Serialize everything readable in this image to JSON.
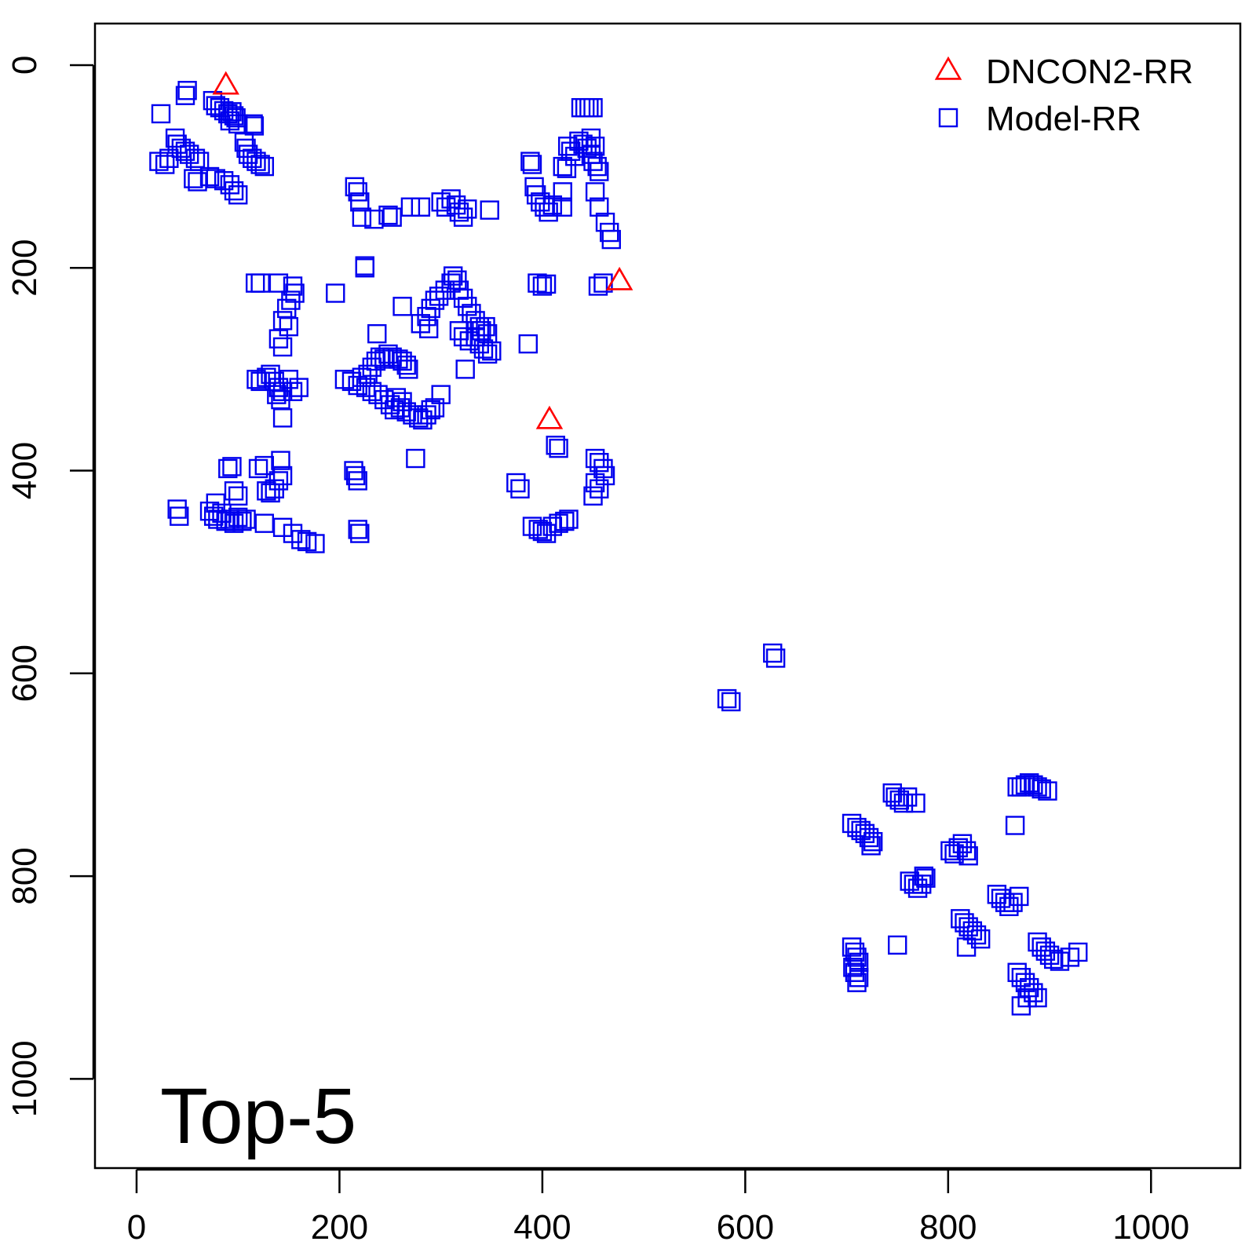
{
  "chart_data": {
    "type": "scatter",
    "title": "",
    "xlabel": "",
    "ylabel": "",
    "xlim": [
      -41,
      1088
    ],
    "ylim": [
      1088,
      -41
    ],
    "y_axis_inverted": true,
    "grid": false,
    "x_ticks": [
      "0",
      "200",
      "400",
      "600",
      "800",
      "1000"
    ],
    "y_ticks": [
      "0",
      "200",
      "400",
      "600",
      "800",
      "1000"
    ],
    "annotation": "Top-5",
    "legend": {
      "placement": "top-right",
      "entries": [
        {
          "label": "DNCON2-RR",
          "marker": "triangle",
          "color": "#ff0000"
        },
        {
          "label": "Model-RR",
          "marker": "square",
          "color": "#0000ee"
        }
      ]
    },
    "series": [
      {
        "name": "DNCON2-RR",
        "marker": "triangle",
        "color": "#ff0000",
        "points": [
          [
            88,
            20
          ],
          [
            476,
            213
          ],
          [
            407,
            350
          ]
        ]
      },
      {
        "name": "Model-RR",
        "marker": "square",
        "color": "#0000ee",
        "points": [
          [
            50,
            25
          ],
          [
            48,
            30
          ],
          [
            75,
            35
          ],
          [
            78,
            40
          ],
          [
            82,
            42
          ],
          [
            86,
            45
          ],
          [
            90,
            48
          ],
          [
            94,
            46
          ],
          [
            96,
            50
          ],
          [
            98,
            52
          ],
          [
            92,
            55
          ],
          [
            100,
            58
          ],
          [
            24,
            48
          ],
          [
            38,
            72
          ],
          [
            40,
            78
          ],
          [
            44,
            82
          ],
          [
            48,
            85
          ],
          [
            52,
            88
          ],
          [
            58,
            92
          ],
          [
            62,
            95
          ],
          [
            22,
            95
          ],
          [
            28,
            98
          ],
          [
            32,
            92
          ],
          [
            115,
            58
          ],
          [
            116,
            60
          ],
          [
            106,
            76
          ],
          [
            108,
            82
          ],
          [
            110,
            88
          ],
          [
            114,
            92
          ],
          [
            118,
            95
          ],
          [
            122,
            98
          ],
          [
            126,
            100
          ],
          [
            56,
            112
          ],
          [
            60,
            115
          ],
          [
            72,
            110
          ],
          [
            78,
            112
          ],
          [
            86,
            114
          ],
          [
            92,
            118
          ],
          [
            96,
            124
          ],
          [
            100,
            128
          ],
          [
            215,
            120
          ],
          [
            218,
            125
          ],
          [
            220,
            135
          ],
          [
            222,
            150
          ],
          [
            234,
            152
          ],
          [
            248,
            148
          ],
          [
            252,
            150
          ],
          [
            270,
            140
          ],
          [
            280,
            140
          ],
          [
            300,
            135
          ],
          [
            305,
            140
          ],
          [
            310,
            132
          ],
          [
            315,
            138
          ],
          [
            318,
            145
          ],
          [
            322,
            150
          ],
          [
            326,
            142
          ],
          [
            348,
            143
          ],
          [
            388,
            95
          ],
          [
            390,
            98
          ],
          [
            392,
            120
          ],
          [
            394,
            128
          ],
          [
            398,
            135
          ],
          [
            402,
            140
          ],
          [
            406,
            145
          ],
          [
            410,
            138
          ],
          [
            420,
            140
          ],
          [
            420,
            125
          ],
          [
            438,
            42
          ],
          [
            442,
            42
          ],
          [
            446,
            42
          ],
          [
            450,
            42
          ],
          [
            425,
            80
          ],
          [
            428,
            85
          ],
          [
            432,
            90
          ],
          [
            436,
            75
          ],
          [
            440,
            78
          ],
          [
            444,
            82
          ],
          [
            448,
            88
          ],
          [
            450,
            95
          ],
          [
            454,
            100
          ],
          [
            456,
            105
          ],
          [
            452,
            80
          ],
          [
            448,
            72
          ],
          [
            452,
            125
          ],
          [
            456,
            140
          ],
          [
            462,
            155
          ],
          [
            466,
            165
          ],
          [
            468,
            172
          ],
          [
            420,
            100
          ],
          [
            424,
            102
          ],
          [
            395,
            215
          ],
          [
            400,
            218
          ],
          [
            404,
            216
          ],
          [
            455,
            218
          ],
          [
            460,
            215
          ],
          [
            117,
            215
          ],
          [
            122,
            215
          ],
          [
            140,
            215
          ],
          [
            154,
            218
          ],
          [
            156,
            225
          ],
          [
            152,
            232
          ],
          [
            148,
            240
          ],
          [
            144,
            252
          ],
          [
            150,
            258
          ],
          [
            140,
            270
          ],
          [
            144,
            278
          ],
          [
            118,
            310
          ],
          [
            122,
            312
          ],
          [
            128,
            308
          ],
          [
            132,
            305
          ],
          [
            136,
            312
          ],
          [
            140,
            318
          ],
          [
            144,
            322
          ],
          [
            150,
            310
          ],
          [
            154,
            322
          ],
          [
            160,
            318
          ],
          [
            138,
            325
          ],
          [
            142,
            330
          ],
          [
            144,
            348
          ],
          [
            196,
            225
          ],
          [
            225,
            200
          ],
          [
            225,
            198
          ],
          [
            262,
            238
          ],
          [
            237,
            265
          ],
          [
            205,
            310
          ],
          [
            212,
            312
          ],
          [
            218,
            316
          ],
          [
            222,
            308
          ],
          [
            228,
            305
          ],
          [
            232,
            298
          ],
          [
            236,
            292
          ],
          [
            240,
            288
          ],
          [
            244,
            290
          ],
          [
            248,
            285
          ],
          [
            252,
            288
          ],
          [
            258,
            290
          ],
          [
            262,
            292
          ],
          [
            266,
            296
          ],
          [
            268,
            300
          ],
          [
            226,
            318
          ],
          [
            232,
            322
          ],
          [
            238,
            325
          ],
          [
            244,
            330
          ],
          [
            250,
            335
          ],
          [
            254,
            340
          ],
          [
            260,
            338
          ],
          [
            266,
            342
          ],
          [
            272,
            345
          ],
          [
            278,
            348
          ],
          [
            282,
            350
          ],
          [
            286,
            345
          ],
          [
            290,
            340
          ],
          [
            294,
            338
          ],
          [
            300,
            325
          ],
          [
            256,
            328
          ],
          [
            262,
            332
          ],
          [
            280,
            255
          ],
          [
            286,
            248
          ],
          [
            290,
            240
          ],
          [
            294,
            232
          ],
          [
            298,
            228
          ],
          [
            304,
            222
          ],
          [
            310,
            215
          ],
          [
            312,
            208
          ],
          [
            316,
            212
          ],
          [
            318,
            222
          ],
          [
            322,
            230
          ],
          [
            326,
            238
          ],
          [
            330,
            245
          ],
          [
            334,
            252
          ],
          [
            318,
            262
          ],
          [
            322,
            268
          ],
          [
            328,
            272
          ],
          [
            334,
            268
          ],
          [
            340,
            262
          ],
          [
            344,
            258
          ],
          [
            338,
            275
          ],
          [
            342,
            280
          ],
          [
            346,
            285
          ],
          [
            350,
            282
          ],
          [
            324,
            300
          ],
          [
            338,
            258
          ],
          [
            346,
            265
          ],
          [
            288,
            260
          ],
          [
            386,
            275
          ],
          [
            374,
            412
          ],
          [
            378,
            418
          ],
          [
            413,
            375
          ],
          [
            416,
            378
          ],
          [
            452,
            388
          ],
          [
            456,
            392
          ],
          [
            460,
            398
          ],
          [
            462,
            405
          ],
          [
            452,
            412
          ],
          [
            456,
            418
          ],
          [
            450,
            425
          ],
          [
            390,
            455
          ],
          [
            396,
            458
          ],
          [
            400,
            460
          ],
          [
            404,
            462
          ],
          [
            410,
            455
          ],
          [
            416,
            452
          ],
          [
            422,
            450
          ],
          [
            426,
            448
          ],
          [
            90,
            398
          ],
          [
            94,
            396
          ],
          [
            120,
            398
          ],
          [
            126,
            395
          ],
          [
            142,
            390
          ],
          [
            140,
            410
          ],
          [
            144,
            405
          ],
          [
            96,
            420
          ],
          [
            100,
            425
          ],
          [
            128,
            420
          ],
          [
            132,
            422
          ],
          [
            136,
            418
          ],
          [
            78,
            432
          ],
          [
            72,
            440
          ],
          [
            76,
            445
          ],
          [
            80,
            448
          ],
          [
            84,
            442
          ],
          [
            88,
            450
          ],
          [
            92,
            448
          ],
          [
            96,
            452
          ],
          [
            100,
            446
          ],
          [
            104,
            450
          ],
          [
            108,
            448
          ],
          [
            40,
            438
          ],
          [
            42,
            445
          ],
          [
            126,
            452
          ],
          [
            144,
            456
          ],
          [
            154,
            462
          ],
          [
            162,
            468
          ],
          [
            168,
            470
          ],
          [
            176,
            472
          ],
          [
            214,
            400
          ],
          [
            216,
            405
          ],
          [
            218,
            410
          ],
          [
            218,
            458
          ],
          [
            220,
            462
          ],
          [
            275,
            388
          ],
          [
            627,
            580
          ],
          [
            630,
            585
          ],
          [
            582,
            625
          ],
          [
            586,
            628
          ],
          [
            745,
            718
          ],
          [
            748,
            722
          ],
          [
            752,
            725
          ],
          [
            756,
            728
          ],
          [
            760,
            722
          ],
          [
            768,
            728
          ],
          [
            705,
            748
          ],
          [
            710,
            752
          ],
          [
            714,
            755
          ],
          [
            718,
            758
          ],
          [
            722,
            762
          ],
          [
            726,
            766
          ],
          [
            724,
            770
          ],
          [
            868,
            712
          ],
          [
            872,
            712
          ],
          [
            876,
            710
          ],
          [
            880,
            708
          ],
          [
            884,
            710
          ],
          [
            888,
            712
          ],
          [
            892,
            714
          ],
          [
            898,
            716
          ],
          [
            866,
            750
          ],
          [
            802,
            775
          ],
          [
            806,
            778
          ],
          [
            810,
            772
          ],
          [
            814,
            768
          ],
          [
            818,
            775
          ],
          [
            820,
            780
          ],
          [
            762,
            805
          ],
          [
            766,
            808
          ],
          [
            770,
            812
          ],
          [
            774,
            808
          ],
          [
            778,
            802
          ],
          [
            776,
            800
          ],
          [
            848,
            818
          ],
          [
            852,
            822
          ],
          [
            856,
            826
          ],
          [
            860,
            830
          ],
          [
            864,
            826
          ],
          [
            870,
            820
          ],
          [
            812,
            842
          ],
          [
            816,
            846
          ],
          [
            820,
            850
          ],
          [
            824,
            854
          ],
          [
            828,
            858
          ],
          [
            832,
            862
          ],
          [
            818,
            870
          ],
          [
            705,
            870
          ],
          [
            708,
            875
          ],
          [
            710,
            880
          ],
          [
            712,
            885
          ],
          [
            706,
            890
          ],
          [
            708,
            895
          ],
          [
            712,
            900
          ],
          [
            710,
            905
          ],
          [
            750,
            868
          ],
          [
            888,
            865
          ],
          [
            892,
            870
          ],
          [
            896,
            874
          ],
          [
            900,
            878
          ],
          [
            904,
            882
          ],
          [
            910,
            884
          ],
          [
            920,
            880
          ],
          [
            928,
            875
          ],
          [
            868,
            895
          ],
          [
            872,
            900
          ],
          [
            876,
            905
          ],
          [
            880,
            910
          ],
          [
            884,
            915
          ],
          [
            888,
            920
          ],
          [
            878,
            920
          ],
          [
            872,
            928
          ]
        ]
      }
    ]
  }
}
